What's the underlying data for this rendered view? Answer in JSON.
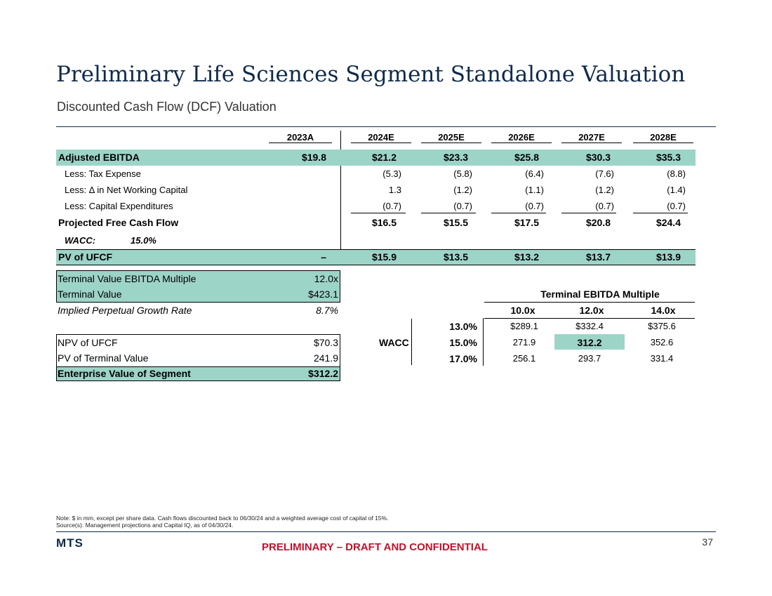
{
  "title": "Preliminary Life Sciences Segment Standalone Valuation",
  "subtitle": "Discounted Cash Flow (DCF) Valuation",
  "years": [
    "2023A",
    "2024E",
    "2025E",
    "2026E",
    "2027E",
    "2028E"
  ],
  "dcf_rows": [
    {
      "label": "Adjusted EBITDA",
      "values": [
        "$19.8",
        "$21.2",
        "$23.3",
        "$25.8",
        "$30.3",
        "$35.3"
      ]
    },
    {
      "label": "Less: Tax Expense",
      "values": [
        "",
        "(5.3)",
        "(5.8)",
        "(6.4)",
        "(7.6)",
        "(8.8)"
      ]
    },
    {
      "label": "Less: Δ  in Net Working Capital",
      "values": [
        "",
        "1.3",
        "(1.2)",
        "(1.1)",
        "(1.2)",
        "(1.4)"
      ]
    },
    {
      "label": "Less: Capital Expenditures",
      "values": [
        "",
        "(0.7)",
        "(0.7)",
        "(0.7)",
        "(0.7)",
        "(0.7)"
      ]
    },
    {
      "label": "Projected Free Cash Flow",
      "values": [
        "",
        "$16.5",
        "$15.5",
        "$17.5",
        "$20.8",
        "$24.4"
      ]
    },
    {
      "label": "PV of UFCF",
      "values": [
        "–",
        "$15.9",
        "$13.5",
        "$13.2",
        "$13.7",
        "$13.9"
      ]
    }
  ],
  "wacc": {
    "label": "WACC:",
    "value": "15.0%"
  },
  "terminal": {
    "multiple_label": "Terminal Value EBITDA Multiple",
    "multiple_value": "12.0x",
    "tv_label": "Terminal Value",
    "tv_value": "$423.1",
    "growth_label": "Implied Perpetual Growth Rate",
    "growth_value": "8.7%"
  },
  "summary": {
    "npv_label": "NPV of UFCF",
    "npv_value": "$70.3",
    "pvtv_label": "PV of Terminal Value",
    "pvtv_value": "241.9",
    "ev_label": "Enterprise Value of Segment",
    "ev_value": "$312.2"
  },
  "sensitivity": {
    "title": "Terminal EBITDA Multiple",
    "row_axis_label": "WACC",
    "columns": [
      "10.0x",
      "12.0x",
      "14.0x"
    ],
    "rows": [
      {
        "wacc": "13.0%",
        "values": [
          "$289.1",
          "$332.4",
          "$375.6"
        ]
      },
      {
        "wacc": "15.0%",
        "values": [
          "271.9",
          "312.2",
          "352.6"
        ]
      },
      {
        "wacc": "17.0%",
        "values": [
          "256.1",
          "293.7",
          "331.4"
        ]
      }
    ]
  },
  "notes": {
    "line1": "Note: $ in mm, except per share data. Cash flows discounted back to 06/30/24 and a weighted average cost of capital of 15%.",
    "line2": "Source(s): Management projections and Capital IQ, as of 04/30/24."
  },
  "footer": {
    "logo": "MTS",
    "confidential": "PRELIMINARY – DRAFT AND CONFIDENTIAL",
    "page_number": "37"
  },
  "colors": {
    "highlight": "#9dd4c8",
    "title": "#0f2a4a",
    "confidential": "#c0122a"
  }
}
